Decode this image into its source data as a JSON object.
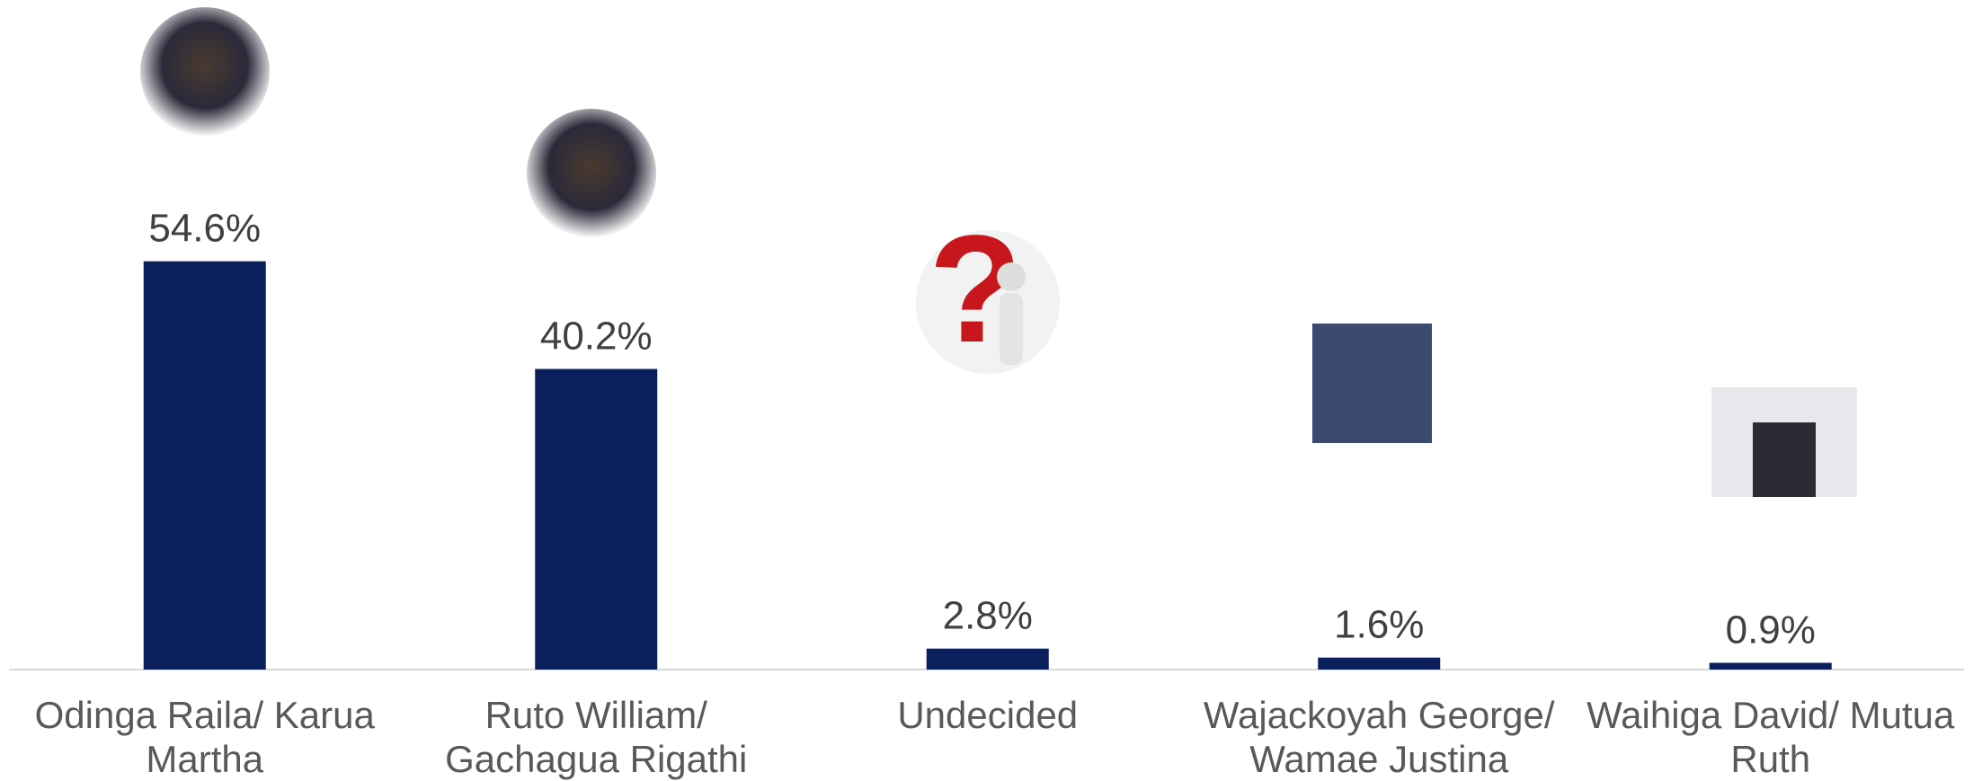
{
  "chart_data": {
    "type": "bar",
    "categories": [
      "Odinga Raila/ Karua Martha",
      "Ruto William/ Gachagua Rigathi",
      "Undecided",
      "Wajackoyah George/ Wamae Justina",
      "Waihiga David/ Mutua Ruth"
    ],
    "values": [
      54.6,
      40.2,
      2.8,
      1.6,
      0.9
    ],
    "value_labels": [
      "54.6%",
      "40.2%",
      "2.8%",
      "1.6%",
      "0.9%"
    ],
    "color": "#0b1f5c"
  }
}
